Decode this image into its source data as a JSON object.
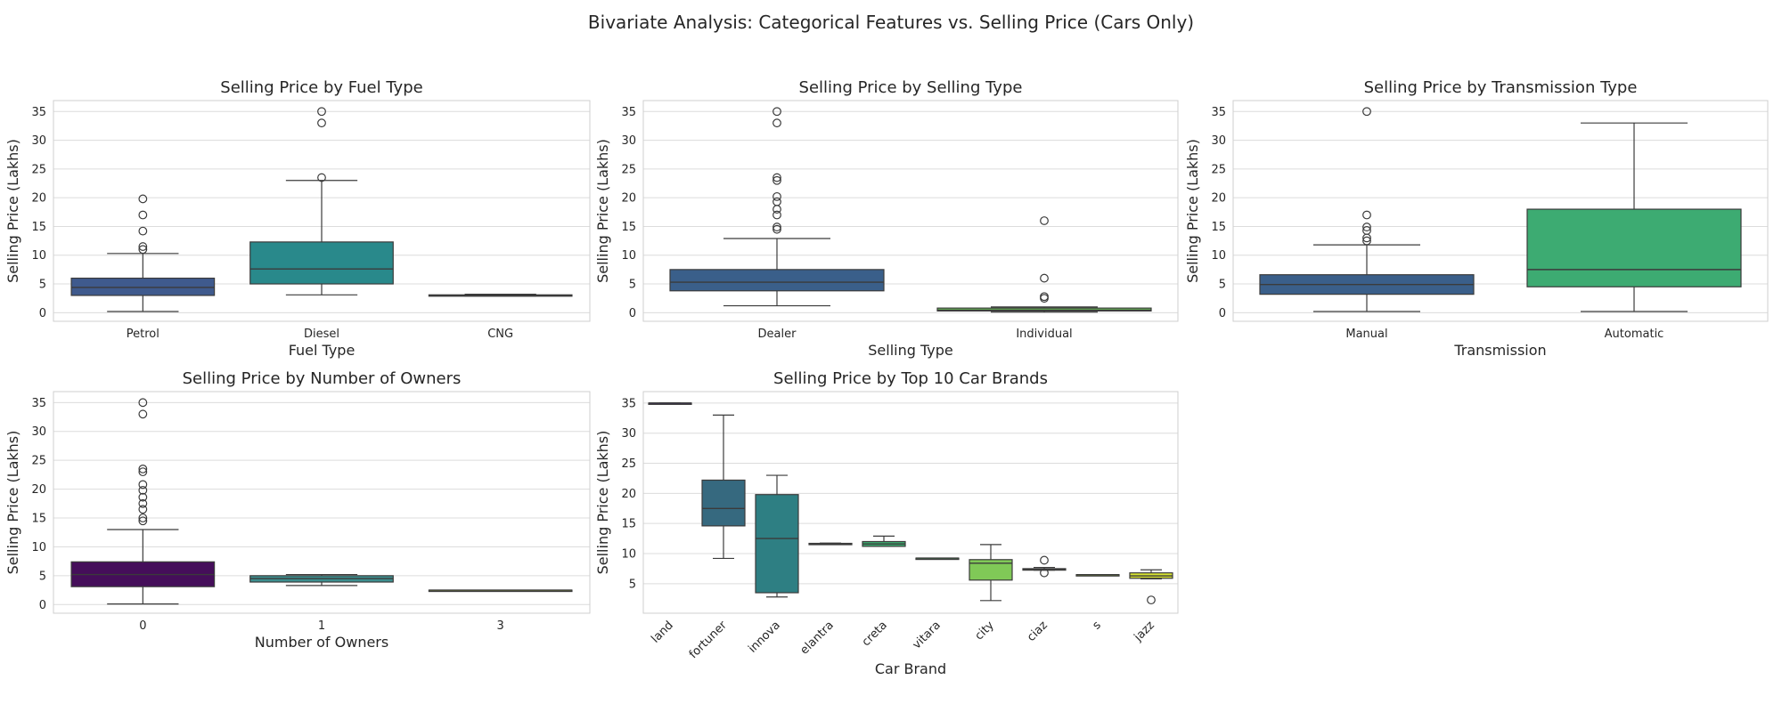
{
  "suptitle": "Bivariate Analysis: Categorical Features vs. Selling Price (Cars Only)",
  "chart_data": [
    {
      "type": "box",
      "title": "Selling Price by Fuel Type",
      "xlabel": "Fuel Type",
      "ylabel": "Selling Price (Lakhs)",
      "ylim": [
        -1.5,
        36.9
      ],
      "yticks": [
        0,
        5,
        10,
        15,
        20,
        25,
        30,
        35
      ],
      "grid": true,
      "categories": [
        "Petrol",
        "Diesel",
        "CNG"
      ],
      "boxes": [
        {
          "whislo": 0.2,
          "q1": 3.0,
          "med": 4.4,
          "q3": 6.0,
          "whishi": 10.3,
          "fliers": [
            11.0,
            11.5,
            14.2,
            17.0,
            19.8
          ],
          "color": "#3f5a8d"
        },
        {
          "whislo": 3.1,
          "q1": 5.0,
          "med": 7.6,
          "q3": 12.3,
          "whishi": 23.0,
          "fliers": [
            23.5,
            33.0,
            35.0
          ],
          "color": "#29898b"
        },
        {
          "whislo": 2.9,
          "q1": 2.95,
          "med": 3.0,
          "q3": 3.1,
          "whishi": 3.2,
          "fliers": [],
          "color": "#35b477"
        }
      ]
    },
    {
      "type": "box",
      "title": "Selling Price by Selling Type",
      "xlabel": "Selling Type",
      "ylabel": "Selling Price (Lakhs)",
      "ylim": [
        -1.5,
        36.9
      ],
      "yticks": [
        0,
        5,
        10,
        15,
        20,
        25,
        30,
        35
      ],
      "grid": true,
      "categories": [
        "Dealer",
        "Individual"
      ],
      "boxes": [
        {
          "whislo": 1.2,
          "q1": 3.8,
          "med": 5.3,
          "q3": 7.5,
          "whishi": 12.9,
          "fliers": [
            14.5,
            14.9,
            17.0,
            18.0,
            19.3,
            20.2,
            23.0,
            23.5,
            33.0,
            35.0
          ],
          "color": "#3a5f8a"
        },
        {
          "whislo": 0.1,
          "q1": 0.3,
          "med": 0.45,
          "q3": 0.8,
          "whishi": 1.0,
          "fliers": [
            2.5,
            2.8,
            6.0,
            16.0
          ],
          "color": "#6fc55d"
        }
      ]
    },
    {
      "type": "box",
      "title": "Selling Price by Transmission Type",
      "xlabel": "Transmission",
      "ylabel": "Selling Price (Lakhs)",
      "ylim": [
        -1.5,
        36.9
      ],
      "yticks": [
        0,
        5,
        10,
        15,
        20,
        25,
        30,
        35
      ],
      "grid": true,
      "categories": [
        "Manual",
        "Automatic"
      ],
      "boxes": [
        {
          "whislo": 0.2,
          "q1": 3.2,
          "med": 4.9,
          "q3": 6.6,
          "whishi": 11.8,
          "fliers": [
            12.5,
            13.0,
            14.3,
            14.9,
            17.0,
            35.0
          ],
          "color": "#3a5f8a"
        },
        {
          "whislo": 0.2,
          "q1": 4.5,
          "med": 7.5,
          "q3": 18.0,
          "whishi": 33.0,
          "fliers": [],
          "color": "#3dab72"
        }
      ]
    },
    {
      "type": "box",
      "title": "Selling Price by Number of Owners",
      "xlabel": "Number of Owners",
      "ylabel": "Selling Price (Lakhs)",
      "ylim": [
        -1.5,
        36.9
      ],
      "yticks": [
        0,
        5,
        10,
        15,
        20,
        25,
        30,
        35
      ],
      "grid": true,
      "categories": [
        "0",
        "1",
        "3"
      ],
      "boxes": [
        {
          "whislo": 0.1,
          "q1": 3.1,
          "med": 5.2,
          "q3": 7.4,
          "whishi": 13.0,
          "fliers": [
            14.5,
            15.0,
            16.5,
            17.5,
            18.6,
            19.8,
            20.8,
            23.0,
            23.5,
            33.0,
            35.0
          ],
          "color": "#450e5a"
        },
        {
          "whislo": 3.3,
          "q1": 3.9,
          "med": 4.5,
          "q3": 5.0,
          "whishi": 5.2,
          "fliers": [],
          "color": "#3c8f8f"
        },
        {
          "whislo": 2.5,
          "q1": 2.5,
          "med": 2.5,
          "q3": 2.5,
          "whishi": 2.5,
          "fliers": [],
          "color": "#b6d334"
        }
      ]
    },
    {
      "type": "box",
      "title": "Selling Price by Top 10 Car Brands",
      "xlabel": "Car Brand",
      "ylabel": "Selling Price (Lakhs)",
      "ylim": [
        0.1,
        36.9
      ],
      "yticks": [
        5,
        10,
        15,
        20,
        25,
        30,
        35
      ],
      "grid": true,
      "categories": [
        "land",
        "fortuner",
        "innova",
        "elantra",
        "creta",
        "vitara",
        "city",
        "ciaz",
        "s",
        "jazz"
      ],
      "boxes": [
        {
          "whislo": 35.0,
          "q1": 35.0,
          "med": 35.0,
          "q3": 35.0,
          "whishi": 35.0,
          "fliers": [],
          "color": "#3e2a6b"
        },
        {
          "whislo": 9.2,
          "q1": 14.6,
          "med": 17.5,
          "q3": 22.2,
          "whishi": 33.0,
          "fliers": [],
          "color": "#36697f"
        },
        {
          "whislo": 2.8,
          "q1": 3.5,
          "med": 12.5,
          "q3": 19.8,
          "whishi": 23.0,
          "fliers": [],
          "color": "#2e7f83"
        },
        {
          "whislo": 11.5,
          "q1": 11.5,
          "med": 11.6,
          "q3": 11.7,
          "whishi": 11.75,
          "fliers": [],
          "color": "#2a9286"
        },
        {
          "whislo": 11.2,
          "q1": 11.2,
          "med": 11.6,
          "q3": 12.0,
          "whishi": 12.9,
          "fliers": [],
          "color": "#3cab6f"
        },
        {
          "whislo": 9.25,
          "q1": 9.25,
          "med": 9.25,
          "q3": 9.25,
          "whishi": 9.25,
          "fliers": [],
          "color": "#4dbb64"
        },
        {
          "whislo": 2.2,
          "q1": 5.6,
          "med": 8.4,
          "q3": 9.0,
          "whishi": 11.5,
          "fliers": [],
          "color": "#80c957"
        },
        {
          "whislo": 7.25,
          "q1": 7.25,
          "med": 7.4,
          "q3": 7.5,
          "whishi": 7.7,
          "fliers": [
            6.8,
            8.9
          ],
          "color": "#9cd34c"
        },
        {
          "whislo": 6.5,
          "q1": 6.5,
          "med": 6.5,
          "q3": 6.5,
          "whishi": 6.5,
          "fliers": [],
          "color": "#b6da3c"
        },
        {
          "whislo": 5.8,
          "q1": 5.9,
          "med": 6.3,
          "q3": 6.8,
          "whishi": 7.3,
          "fliers": [
            2.3
          ],
          "color": "#d6e232"
        }
      ]
    }
  ]
}
